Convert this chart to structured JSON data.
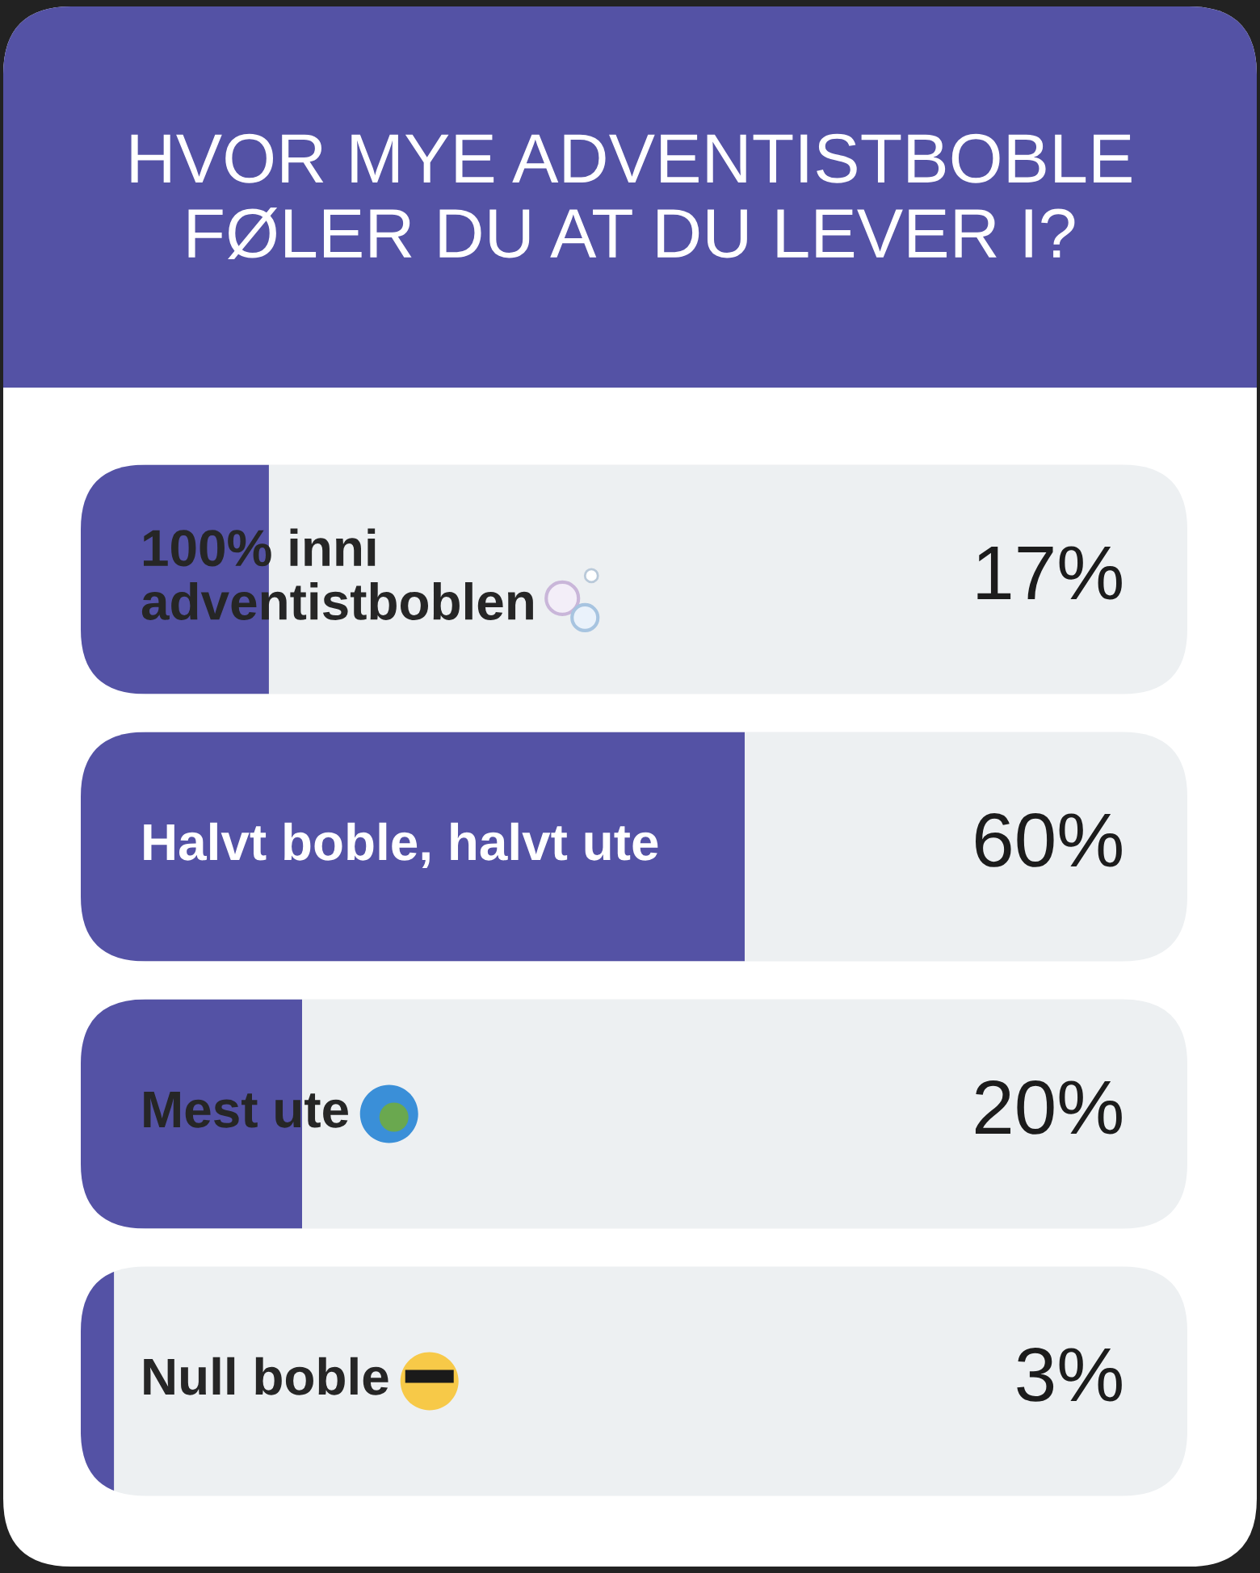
{
  "chart_data": {
    "type": "bar",
    "orientation": "horizontal",
    "title": "HVOR MYE ADVENTISTBOBLE\nFØLER DU AT DU LEVER I?",
    "categories": [
      "100% inni\nadventistboblen",
      "Halvt boble, halvt ute",
      "Mest ute",
      "Null boble"
    ],
    "values": [
      17,
      60,
      20,
      3
    ],
    "value_labels": [
      "17%",
      "60%",
      "20%",
      "3%"
    ],
    "color": "#5452a5",
    "xlim": [
      0,
      100
    ],
    "legend": false
  }
}
